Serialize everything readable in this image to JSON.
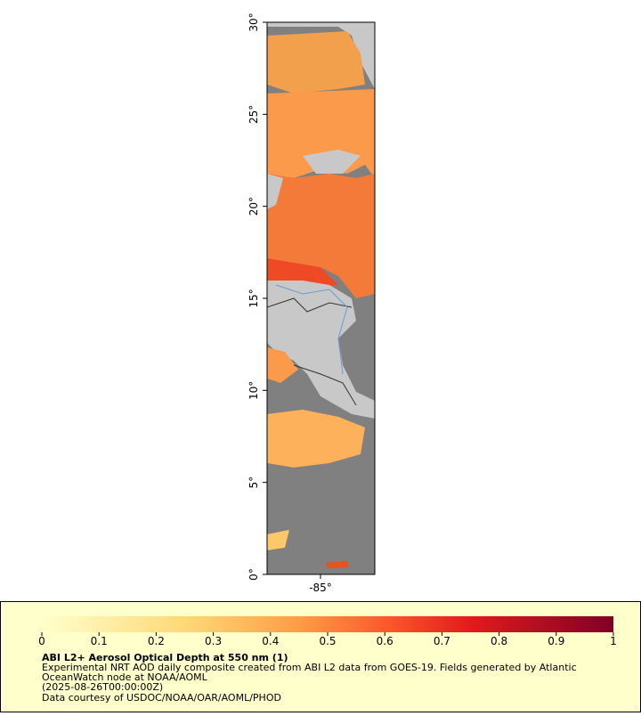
{
  "map": {
    "lat_ticks": [
      {
        "value": 0,
        "label": "0°"
      },
      {
        "value": 5,
        "label": "5°"
      },
      {
        "value": 10,
        "label": "10°"
      },
      {
        "value": 15,
        "label": "15°"
      },
      {
        "value": 20,
        "label": "20°"
      },
      {
        "value": 25,
        "label": "25°"
      },
      {
        "value": 30,
        "label": "30°"
      }
    ],
    "lat_range": [
      0,
      30
    ],
    "lon_label": "-85°"
  },
  "colorbar": {
    "range": [
      0,
      1
    ],
    "ticks": [
      0,
      0.1,
      0.2,
      0.3,
      0.4,
      0.5,
      0.6,
      0.7,
      0.8,
      0.9,
      1
    ]
  },
  "legend": {
    "title": "ABI L2+ Aerosol Optical Depth at 550 nm (1)",
    "lines": [
      "Experimental NRT AOD daily composite created from ABI L2 data from GOES-19. Fields generated by Atlantic",
      "OceanWatch node at NOAA/AOML",
      "(2025-08-26T00:00:00Z)",
      "Data courtesy of USDOC/NOAA/OAR/AOML/PHOD"
    ]
  }
}
